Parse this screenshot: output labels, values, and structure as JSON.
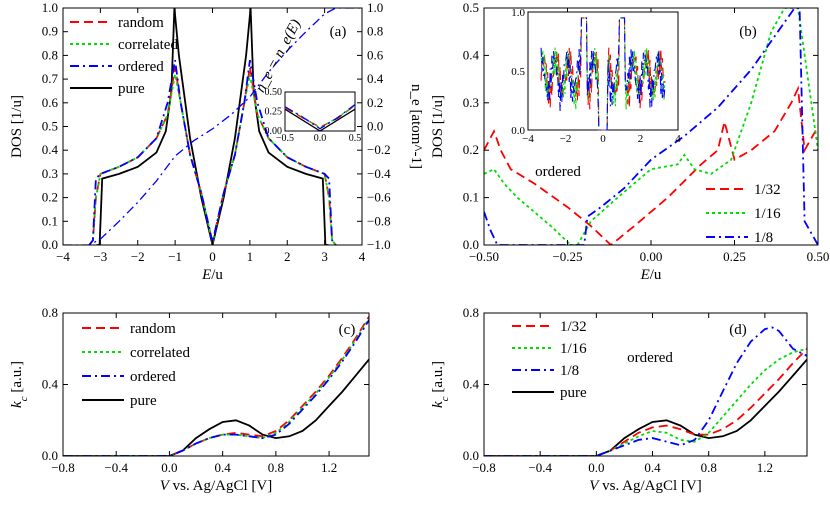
{
  "colors": {
    "random": "#ff0000",
    "correlated": "#00dd00",
    "ordered": "#0000ff",
    "pure": "#000000",
    "c132": "#ff0000",
    "c116": "#00dd00",
    "c18": "#0000ff"
  },
  "chart_data": [
    {
      "id": "a",
      "type": "line",
      "panel_label": "(a)",
      "xlabel_italic": "E",
      "xlabel_rest": "/u",
      "ylabel": "DOS [1/u]",
      "y2label": "n_e [atom^-1]",
      "annotation": "n_e = n_e(E)",
      "xlim": [
        -4,
        4
      ],
      "ylim": [
        0,
        1
      ],
      "y2lim": [
        -1,
        1
      ],
      "xticks": [
        -4,
        -3,
        -2,
        -1,
        0,
        1,
        2,
        3,
        4
      ],
      "xtick_labels": [
        "−4",
        "−3",
        "−2",
        "−1",
        "0",
        "1",
        "2",
        "3",
        "4"
      ],
      "yticks": [
        0,
        0.1,
        0.2,
        0.3,
        0.4,
        0.5,
        0.6,
        0.7,
        0.8,
        0.9,
        1.0
      ],
      "ytick_labels": [
        "0.0",
        "0.1",
        "0.2",
        "0.3",
        "0.4",
        "0.5",
        "0.6",
        "0.7",
        "0.8",
        "0.9",
        "1.0"
      ],
      "y2ticks": [
        -1,
        -0.8,
        -0.6,
        -0.4,
        -0.2,
        0,
        0.2,
        0.4,
        0.6,
        0.8,
        1.0
      ],
      "y2tick_labels": [
        "−1.0",
        "−0.8",
        "−0.6",
        "−0.4",
        "−0.2",
        "0.0",
        "0.2",
        "0.4",
        "0.6",
        "0.8",
        "1.0"
      ],
      "legend": [
        "random",
        "correlated",
        "ordered",
        "pure"
      ],
      "series": [
        {
          "name": "pure",
          "x": [
            -3.1,
            -3.02,
            -2.95,
            -2.5,
            -2.0,
            -1.5,
            -1.25,
            -1.1,
            -1.02,
            -0.9,
            -0.6,
            -0.3,
            0,
            0.3,
            0.6,
            0.9,
            1.02,
            1.1,
            1.25,
            1.5,
            2.0,
            2.5,
            2.95,
            3.02,
            3.1
          ],
          "y": [
            0,
            0.0,
            0.28,
            0.3,
            0.33,
            0.39,
            0.48,
            0.65,
            1.0,
            0.8,
            0.45,
            0.2,
            0.0,
            0.2,
            0.45,
            0.8,
            1.0,
            0.65,
            0.48,
            0.39,
            0.33,
            0.3,
            0.28,
            0.0,
            0
          ]
        },
        {
          "name": "random",
          "x": [
            -3.3,
            -3.2,
            -3.12,
            -3.0,
            -2.5,
            -2.0,
            -1.5,
            -1.2,
            -1.0,
            -0.85,
            -0.6,
            -0.3,
            -0.1,
            0,
            0.1,
            0.3,
            0.6,
            0.85,
            1.0,
            1.2,
            1.5,
            2.0,
            2.5,
            3.0,
            3.12,
            3.2,
            3.3
          ],
          "y": [
            0.0,
            0.02,
            0.2,
            0.3,
            0.33,
            0.37,
            0.45,
            0.55,
            0.75,
            0.6,
            0.38,
            0.22,
            0.08,
            0.01,
            0.08,
            0.22,
            0.38,
            0.6,
            0.75,
            0.55,
            0.45,
            0.37,
            0.33,
            0.3,
            0.2,
            0.02,
            0.0
          ]
        },
        {
          "name": "correlated",
          "x": [
            -3.3,
            -3.2,
            -3.12,
            -3.0,
            -2.5,
            -2.0,
            -1.5,
            -1.2,
            -1.0,
            -0.85,
            -0.6,
            -0.3,
            -0.1,
            0,
            0.1,
            0.3,
            0.6,
            0.85,
            1.0,
            1.2,
            1.5,
            2.0,
            2.5,
            3.0,
            3.12,
            3.2,
            3.3
          ],
          "y": [
            0.0,
            0.02,
            0.2,
            0.3,
            0.33,
            0.37,
            0.45,
            0.55,
            0.72,
            0.6,
            0.38,
            0.22,
            0.08,
            0.01,
            0.08,
            0.22,
            0.38,
            0.6,
            0.72,
            0.55,
            0.45,
            0.37,
            0.33,
            0.3,
            0.2,
            0.02,
            0.0
          ]
        },
        {
          "name": "ordered",
          "x": [
            -3.3,
            -3.2,
            -3.12,
            -3.0,
            -2.5,
            -2.0,
            -1.5,
            -1.2,
            -1.0,
            -0.85,
            -0.6,
            -0.3,
            -0.1,
            0,
            0.1,
            0.3,
            0.6,
            0.85,
            1.0,
            1.2,
            1.5,
            2.0,
            2.5,
            3.0,
            3.12,
            3.2,
            3.3
          ],
          "y": [
            0.0,
            0.02,
            0.28,
            0.3,
            0.33,
            0.37,
            0.45,
            0.6,
            0.78,
            0.6,
            0.38,
            0.22,
            0.08,
            0.01,
            0.08,
            0.22,
            0.38,
            0.6,
            0.78,
            0.6,
            0.45,
            0.37,
            0.33,
            0.3,
            0.28,
            0.02,
            0.0
          ]
        },
        {
          "name": "n_e random",
          "axis": "y2",
          "x": [
            -4,
            -3.3,
            -3.0,
            -2.5,
            -2.0,
            -1.5,
            -1.0,
            -0.5,
            0,
            0.5,
            1.0,
            1.5,
            2.0,
            2.5,
            3.0,
            3.3,
            4
          ],
          "y": [
            -1.0,
            -1.0,
            -0.95,
            -0.8,
            -0.64,
            -0.46,
            -0.25,
            -0.12,
            -0.02,
            0.1,
            0.25,
            0.46,
            0.64,
            0.8,
            0.95,
            1.0,
            1.0
          ]
        }
      ],
      "inset": {
        "xlim": [
          -0.5,
          0.5
        ],
        "ylim": [
          0,
          0.5
        ],
        "xticks": [
          -0.5,
          0,
          0.5
        ],
        "xtick_labels": [
          "−0.5",
          "0.0",
          "0.5"
        ],
        "yticks": [
          0,
          0.25,
          0.5
        ],
        "ytick_labels": [
          "0.00",
          "0.25",
          "0.50"
        ],
        "series": [
          {
            "name": "pure",
            "x": [
              -0.5,
              0,
              0.5
            ],
            "y": [
              0.28,
              0,
              0.28
            ]
          },
          {
            "name": "random",
            "x": [
              -0.5,
              -0.25,
              0,
              0.25,
              0.5
            ],
            "y": [
              0.3,
              0.17,
              0.05,
              0.16,
              0.33
            ]
          },
          {
            "name": "correlated",
            "x": [
              -0.5,
              -0.25,
              0,
              0.25,
              0.5
            ],
            "y": [
              0.31,
              0.18,
              0.04,
              0.17,
              0.33
            ]
          },
          {
            "name": "ordered",
            "x": [
              -0.5,
              -0.25,
              0,
              0.25,
              0.5
            ],
            "y": [
              0.31,
              0.18,
              0.03,
              0.17,
              0.34
            ]
          }
        ]
      }
    },
    {
      "id": "b",
      "type": "line",
      "panel_label": "(b)",
      "xlabel_italic": "E",
      "xlabel_rest": "/u",
      "ylabel": "DOS [1/u]",
      "annotation": "ordered",
      "xlim": [
        -0.5,
        0.5
      ],
      "ylim": [
        0,
        0.5
      ],
      "xticks": [
        -0.5,
        -0.25,
        0,
        0.25,
        0.5
      ],
      "xtick_labels": [
        "−0.50",
        "−0.25",
        "0.00",
        "0.25",
        "0.50"
      ],
      "yticks": [
        0,
        0.1,
        0.2,
        0.3,
        0.4,
        0.5
      ],
      "ytick_labels": [
        "0.0",
        "0.1",
        "0.2",
        "0.3",
        "0.4",
        "0.5"
      ],
      "legend": [
        "1/32",
        "1/16",
        "1/8"
      ],
      "series": [
        {
          "name": "1/32",
          "x": [
            -0.5,
            -0.47,
            -0.45,
            -0.42,
            -0.35,
            -0.25,
            -0.18,
            -0.12,
            -0.05,
            0.05,
            0.15,
            0.2,
            0.22,
            0.25,
            0.3,
            0.37,
            0.42,
            0.44,
            0.46,
            0.5
          ],
          "y": [
            0.2,
            0.24,
            0.2,
            0.16,
            0.13,
            0.08,
            0.04,
            0.0,
            0.04,
            0.1,
            0.17,
            0.2,
            0.26,
            0.18,
            0.2,
            0.24,
            0.3,
            0.33,
            0.2,
            0.25
          ]
        },
        {
          "name": "1/16",
          "x": [
            -0.5,
            -0.47,
            -0.44,
            -0.4,
            -0.3,
            -0.24,
            -0.22,
            -0.18,
            -0.1,
            0.0,
            0.08,
            0.1,
            0.13,
            0.18,
            0.24,
            0.3,
            0.36,
            0.4,
            0.44,
            0.5
          ],
          "y": [
            0.15,
            0.16,
            0.13,
            0.1,
            0.04,
            0.0,
            0.0,
            0.05,
            0.1,
            0.16,
            0.17,
            0.19,
            0.16,
            0.15,
            0.18,
            0.3,
            0.45,
            0.5,
            0.5,
            0.2
          ]
        },
        {
          "name": "1/8",
          "x": [
            -0.5,
            -0.48,
            -0.46,
            -0.45,
            -0.35,
            -0.25,
            -0.2,
            -0.19,
            -0.15,
            -0.08,
            0.0,
            0.1,
            0.2,
            0.3,
            0.38,
            0.43,
            0.445,
            0.46,
            0.5
          ],
          "y": [
            0.07,
            0.03,
            0.0,
            0.0,
            0.0,
            0.0,
            0.0,
            0.06,
            0.08,
            0.12,
            0.18,
            0.23,
            0.29,
            0.37,
            0.45,
            0.5,
            0.5,
            0.05,
            0.0
          ]
        }
      ],
      "inset": {
        "xlim": [
          -4,
          4
        ],
        "ylim": [
          0,
          1
        ],
        "xticks": [
          -4,
          -2,
          0,
          2,
          4
        ],
        "xtick_labels": [
          "−4",
          "−2",
          "0",
          "2",
          "4"
        ],
        "yticks": [
          0,
          0.5,
          1.0
        ],
        "ytick_labels": [
          "0.0",
          "0.5",
          "1.0"
        ]
      }
    },
    {
      "id": "c",
      "type": "line",
      "panel_label": "(c)",
      "xlabel_italic": "V",
      "xlabel_rest": " vs. Ag/AgCl [V]",
      "ylabel_italic": "k",
      "ylabel_sub": "c",
      "ylabel_rest": " [a.u.]",
      "xlim": [
        -0.8,
        1.5
      ],
      "ylim": [
        0,
        0.8
      ],
      "xticks": [
        -0.8,
        -0.4,
        0,
        0.4,
        0.8,
        1.2
      ],
      "xtick_labels": [
        "−0.8",
        "−0.4",
        "0.0",
        "0.4",
        "0.8",
        "1.2"
      ],
      "yticks": [
        0,
        0.4,
        0.8
      ],
      "ytick_labels": [
        "0.0",
        "0.4",
        "0.8"
      ],
      "legend": [
        "random",
        "correlated",
        "ordered",
        "pure"
      ],
      "series": [
        {
          "name": "pure",
          "x": [
            -0.8,
            0.0,
            0.1,
            0.2,
            0.3,
            0.4,
            0.5,
            0.6,
            0.7,
            0.8,
            0.9,
            1.0,
            1.1,
            1.2,
            1.3,
            1.4,
            1.5
          ],
          "y": [
            0,
            0.0,
            0.03,
            0.1,
            0.15,
            0.19,
            0.2,
            0.17,
            0.12,
            0.1,
            0.11,
            0.14,
            0.2,
            0.28,
            0.36,
            0.45,
            0.54
          ]
        },
        {
          "name": "random",
          "x": [
            -0.8,
            0.0,
            0.1,
            0.2,
            0.3,
            0.4,
            0.5,
            0.6,
            0.7,
            0.8,
            0.9,
            1.0,
            1.1,
            1.2,
            1.3,
            1.4,
            1.5
          ],
          "y": [
            0,
            0.0,
            0.03,
            0.07,
            0.1,
            0.12,
            0.13,
            0.12,
            0.11,
            0.14,
            0.2,
            0.28,
            0.36,
            0.45,
            0.55,
            0.66,
            0.78
          ]
        },
        {
          "name": "correlated",
          "x": [
            -0.8,
            0.0,
            0.1,
            0.2,
            0.3,
            0.4,
            0.5,
            0.6,
            0.7,
            0.8,
            0.9,
            1.0,
            1.1,
            1.2,
            1.3,
            1.4,
            1.5
          ],
          "y": [
            0,
            0.0,
            0.03,
            0.07,
            0.1,
            0.12,
            0.12,
            0.11,
            0.1,
            0.13,
            0.19,
            0.27,
            0.35,
            0.44,
            0.54,
            0.65,
            0.77
          ]
        },
        {
          "name": "ordered",
          "x": [
            -0.8,
            0.0,
            0.1,
            0.2,
            0.3,
            0.4,
            0.5,
            0.6,
            0.7,
            0.8,
            0.9,
            1.0,
            1.1,
            1.2,
            1.3,
            1.4,
            1.5
          ],
          "y": [
            0,
            0.0,
            0.03,
            0.07,
            0.1,
            0.12,
            0.12,
            0.11,
            0.1,
            0.12,
            0.18,
            0.26,
            0.34,
            0.43,
            0.53,
            0.64,
            0.76
          ]
        }
      ]
    },
    {
      "id": "d",
      "type": "line",
      "panel_label": "(d)",
      "xlabel_italic": "V",
      "xlabel_rest": " vs. Ag/AgCl [V]",
      "ylabel_italic": "k",
      "ylabel_sub": "c",
      "ylabel_rest": " [a.u.]",
      "annotation": "ordered",
      "xlim": [
        -0.8,
        1.5
      ],
      "ylim": [
        0,
        0.8
      ],
      "xticks": [
        -0.8,
        -0.4,
        0,
        0.4,
        0.8,
        1.2
      ],
      "xtick_labels": [
        "−0.8",
        "−0.4",
        "0.0",
        "0.4",
        "0.8",
        "1.2"
      ],
      "yticks": [
        0,
        0.4,
        0.8
      ],
      "ytick_labels": [
        "0.0",
        "0.4",
        "0.8"
      ],
      "legend": [
        "1/32",
        "1/16",
        "1/8",
        "pure"
      ],
      "series": [
        {
          "name": "pure",
          "x": [
            -0.8,
            0.0,
            0.1,
            0.2,
            0.3,
            0.4,
            0.5,
            0.6,
            0.7,
            0.8,
            0.9,
            1.0,
            1.1,
            1.2,
            1.3,
            1.4,
            1.5
          ],
          "y": [
            0,
            0.0,
            0.03,
            0.1,
            0.15,
            0.19,
            0.2,
            0.17,
            0.12,
            0.1,
            0.11,
            0.14,
            0.2,
            0.28,
            0.36,
            0.45,
            0.54
          ]
        },
        {
          "name": "1/32",
          "x": [
            -0.8,
            0.0,
            0.1,
            0.2,
            0.3,
            0.4,
            0.5,
            0.6,
            0.7,
            0.8,
            0.9,
            1.0,
            1.1,
            1.2,
            1.3,
            1.4,
            1.5
          ],
          "y": [
            0,
            0.0,
            0.03,
            0.08,
            0.13,
            0.16,
            0.17,
            0.15,
            0.12,
            0.12,
            0.15,
            0.2,
            0.27,
            0.35,
            0.43,
            0.52,
            0.6
          ]
        },
        {
          "name": "1/16",
          "x": [
            -0.8,
            0.0,
            0.1,
            0.2,
            0.3,
            0.4,
            0.5,
            0.6,
            0.7,
            0.8,
            0.9,
            1.0,
            1.1,
            1.2,
            1.3,
            1.4,
            1.5
          ],
          "y": [
            0,
            0.0,
            0.03,
            0.07,
            0.11,
            0.14,
            0.13,
            0.09,
            0.08,
            0.13,
            0.22,
            0.31,
            0.4,
            0.48,
            0.54,
            0.58,
            0.6
          ]
        },
        {
          "name": "1/8",
          "x": [
            -0.8,
            0.0,
            0.1,
            0.2,
            0.3,
            0.4,
            0.5,
            0.6,
            0.7,
            0.8,
            0.9,
            1.0,
            1.1,
            1.2,
            1.25,
            1.3,
            1.4,
            1.5
          ],
          "y": [
            0,
            0.0,
            0.03,
            0.06,
            0.09,
            0.1,
            0.08,
            0.06,
            0.09,
            0.2,
            0.36,
            0.52,
            0.64,
            0.71,
            0.72,
            0.7,
            0.6,
            0.56
          ]
        }
      ]
    }
  ]
}
